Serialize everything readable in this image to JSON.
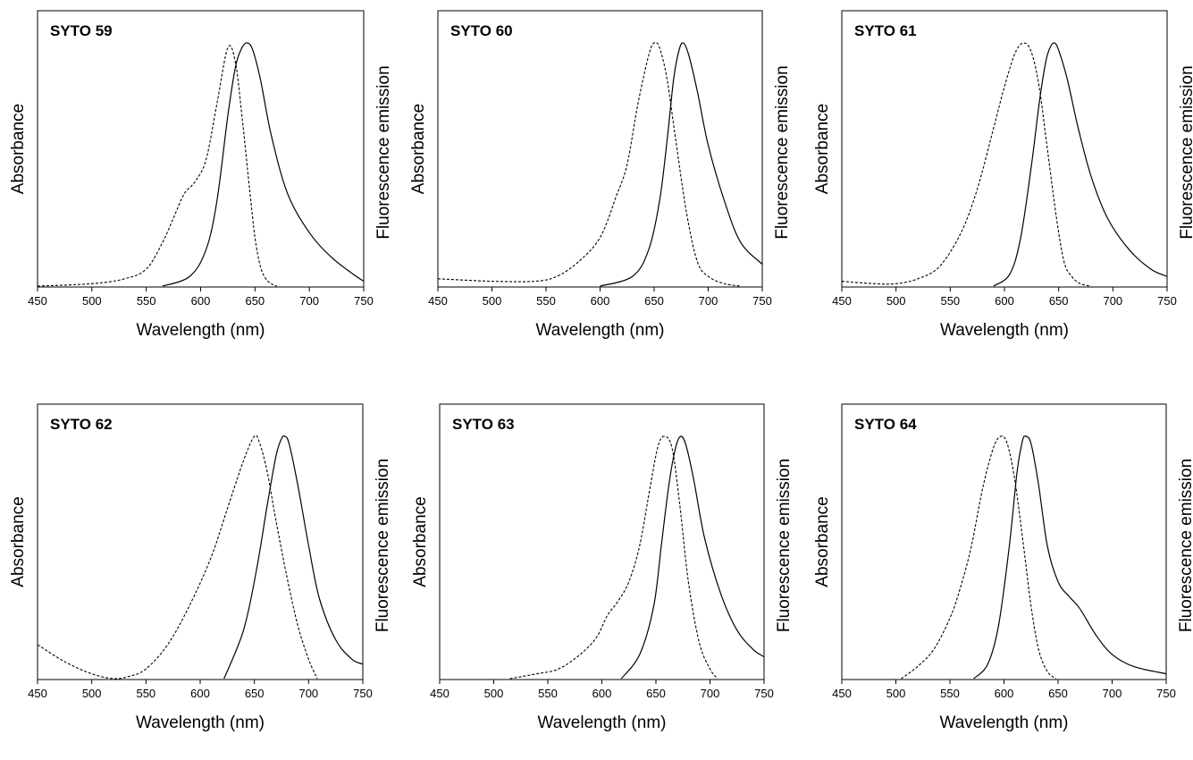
{
  "chart_data": [
    {
      "type": "line",
      "title": "SYTO 59",
      "xlabel": "Wavelength (nm)",
      "ylabel_left": "Absorbance",
      "ylabel_right": "Fluorescence emission",
      "xlim": [
        450,
        750
      ],
      "xticks": [
        "450",
        "500",
        "550",
        "600",
        "650",
        "700",
        "750"
      ],
      "grid": false,
      "series": [
        {
          "role": "absorbance",
          "style": "dashed",
          "x": [
            450,
            500,
            530,
            550,
            565,
            575,
            585,
            595,
            605,
            615,
            625,
            632,
            638,
            645,
            650,
            655,
            660,
            665,
            670
          ],
          "y": [
            0.0,
            0.01,
            0.03,
            0.07,
            0.18,
            0.28,
            0.38,
            0.43,
            0.52,
            0.75,
            0.98,
            0.92,
            0.7,
            0.4,
            0.2,
            0.08,
            0.03,
            0.01,
            0.0
          ]
        },
        {
          "role": "emission",
          "style": "solid",
          "x": [
            565,
            590,
            605,
            615,
            625,
            632,
            638,
            643,
            648,
            655,
            665,
            680,
            700,
            720,
            740,
            750
          ],
          "y": [
            0.0,
            0.04,
            0.15,
            0.35,
            0.7,
            0.9,
            0.98,
            1.0,
            0.97,
            0.85,
            0.62,
            0.38,
            0.22,
            0.12,
            0.05,
            0.02
          ]
        }
      ]
    },
    {
      "type": "line",
      "title": "SYTO 60",
      "xlabel": "Wavelength (nm)",
      "ylabel_left": "Absorbance",
      "ylabel_right": "Fluorescence emission",
      "xlim": [
        450,
        750
      ],
      "xticks": [
        "450",
        "500",
        "550",
        "600",
        "650",
        "700",
        "750"
      ],
      "grid": false,
      "series": [
        {
          "role": "absorbance",
          "style": "dashed",
          "x": [
            450,
            500,
            540,
            560,
            580,
            600,
            615,
            625,
            635,
            645,
            650,
            655,
            662,
            670,
            680,
            690,
            700,
            715,
            730
          ],
          "y": [
            0.03,
            0.02,
            0.02,
            0.04,
            0.1,
            0.2,
            0.37,
            0.5,
            0.75,
            0.95,
            1.0,
            0.98,
            0.85,
            0.6,
            0.3,
            0.1,
            0.04,
            0.01,
            0.0
          ]
        },
        {
          "role": "emission",
          "style": "solid",
          "x": [
            600,
            630,
            645,
            655,
            662,
            668,
            673,
            677,
            682,
            690,
            700,
            715,
            730,
            750
          ],
          "y": [
            0.0,
            0.04,
            0.15,
            0.35,
            0.6,
            0.85,
            0.97,
            1.0,
            0.95,
            0.8,
            0.58,
            0.35,
            0.18,
            0.09
          ]
        }
      ]
    },
    {
      "type": "line",
      "title": "SYTO 61",
      "xlabel": "Wavelength (nm)",
      "ylabel_left": "Absorbance",
      "ylabel_right": "Fluorescence emission",
      "xlim": [
        450,
        750
      ],
      "xticks": [
        "450",
        "500",
        "550",
        "600",
        "650",
        "700",
        "750"
      ],
      "grid": false,
      "series": [
        {
          "role": "absorbance",
          "style": "dashed",
          "x": [
            450,
            480,
            500,
            520,
            540,
            560,
            575,
            590,
            600,
            610,
            618,
            625,
            632,
            640,
            648,
            655,
            662,
            670,
            680
          ],
          "y": [
            0.02,
            0.01,
            0.01,
            0.03,
            0.08,
            0.22,
            0.4,
            0.65,
            0.82,
            0.96,
            1.0,
            0.96,
            0.82,
            0.55,
            0.28,
            0.1,
            0.04,
            0.01,
            0.0
          ]
        },
        {
          "role": "emission",
          "style": "solid",
          "x": [
            590,
            605,
            615,
            625,
            632,
            638,
            642,
            646,
            650,
            658,
            668,
            680,
            695,
            715,
            735,
            750
          ],
          "y": [
            0.0,
            0.05,
            0.2,
            0.5,
            0.75,
            0.92,
            0.98,
            1.0,
            0.97,
            0.85,
            0.65,
            0.45,
            0.28,
            0.15,
            0.07,
            0.04
          ]
        }
      ]
    },
    {
      "type": "line",
      "title": "SYTO 62",
      "xlabel": "Wavelength (nm)",
      "ylabel_left": "Absorbance",
      "ylabel_right": "Fluorescence emission",
      "xlim": [
        450,
        750
      ],
      "xticks": [
        "450",
        "500",
        "550",
        "600",
        "650",
        "700",
        "750"
      ],
      "grid": false,
      "series": [
        {
          "role": "absorbance",
          "style": "dashed",
          "x": [
            450,
            475,
            500,
            520,
            535,
            550,
            570,
            590,
            610,
            625,
            640,
            650,
            655,
            662,
            670,
            680,
            690,
            700,
            708
          ],
          "y": [
            0.14,
            0.07,
            0.02,
            0.0,
            0.01,
            0.04,
            0.14,
            0.3,
            0.5,
            0.7,
            0.9,
            1.0,
            0.97,
            0.85,
            0.65,
            0.42,
            0.22,
            0.08,
            0.0
          ]
        },
        {
          "role": "emission",
          "style": "solid",
          "x": [
            622,
            640,
            652,
            662,
            670,
            675,
            678,
            682,
            690,
            700,
            710,
            725,
            740,
            750
          ],
          "y": [
            0.0,
            0.2,
            0.45,
            0.72,
            0.92,
            0.99,
            1.0,
            0.97,
            0.8,
            0.55,
            0.33,
            0.16,
            0.08,
            0.06
          ]
        }
      ]
    },
    {
      "type": "line",
      "title": "SYTO 63",
      "xlabel": "Wavelength (nm)",
      "ylabel_left": "Absorbance",
      "ylabel_right": "Fluorescence emission",
      "xlim": [
        450,
        750
      ],
      "xticks": [
        "450",
        "500",
        "550",
        "600",
        "650",
        "700",
        "750"
      ],
      "grid": false,
      "series": [
        {
          "role": "absorbance",
          "style": "dashed",
          "x": [
            515,
            540,
            560,
            580,
            595,
            605,
            615,
            625,
            635,
            645,
            652,
            658,
            665,
            672,
            680,
            690,
            700,
            707
          ],
          "y": [
            0.0,
            0.02,
            0.04,
            0.1,
            0.17,
            0.26,
            0.32,
            0.4,
            0.55,
            0.8,
            0.96,
            1.0,
            0.95,
            0.72,
            0.4,
            0.15,
            0.04,
            0.0
          ]
        },
        {
          "role": "emission",
          "style": "solid",
          "x": [
            618,
            635,
            648,
            655,
            662,
            668,
            673,
            678,
            685,
            695,
            710,
            725,
            740,
            750
          ],
          "y": [
            0.0,
            0.1,
            0.3,
            0.55,
            0.8,
            0.95,
            1.0,
            0.96,
            0.82,
            0.58,
            0.35,
            0.2,
            0.12,
            0.09
          ]
        }
      ]
    },
    {
      "type": "line",
      "title": "SYTO 64",
      "xlabel": "Wavelength (nm)",
      "ylabel_left": "Absorbance",
      "ylabel_right": "Fluorescence emission",
      "xlim": [
        450,
        750
      ],
      "xticks": [
        "450",
        "500",
        "550",
        "600",
        "650",
        "700",
        "750"
      ],
      "grid": false,
      "series": [
        {
          "role": "absorbance",
          "style": "dashed",
          "x": [
            505,
            520,
            535,
            550,
            560,
            570,
            580,
            590,
            597,
            603,
            610,
            618,
            625,
            632,
            640,
            648
          ],
          "y": [
            0.0,
            0.05,
            0.12,
            0.25,
            0.38,
            0.55,
            0.78,
            0.95,
            1.0,
            0.97,
            0.82,
            0.55,
            0.3,
            0.12,
            0.03,
            0.0
          ]
        },
        {
          "role": "emission",
          "style": "solid",
          "x": [
            572,
            585,
            595,
            605,
            612,
            617,
            620,
            625,
            632,
            640,
            650,
            660,
            670,
            685,
            700,
            720,
            750
          ],
          "y": [
            0.0,
            0.06,
            0.22,
            0.55,
            0.85,
            0.98,
            1.0,
            0.97,
            0.8,
            0.55,
            0.4,
            0.34,
            0.29,
            0.18,
            0.1,
            0.05,
            0.02
          ]
        }
      ]
    }
  ]
}
